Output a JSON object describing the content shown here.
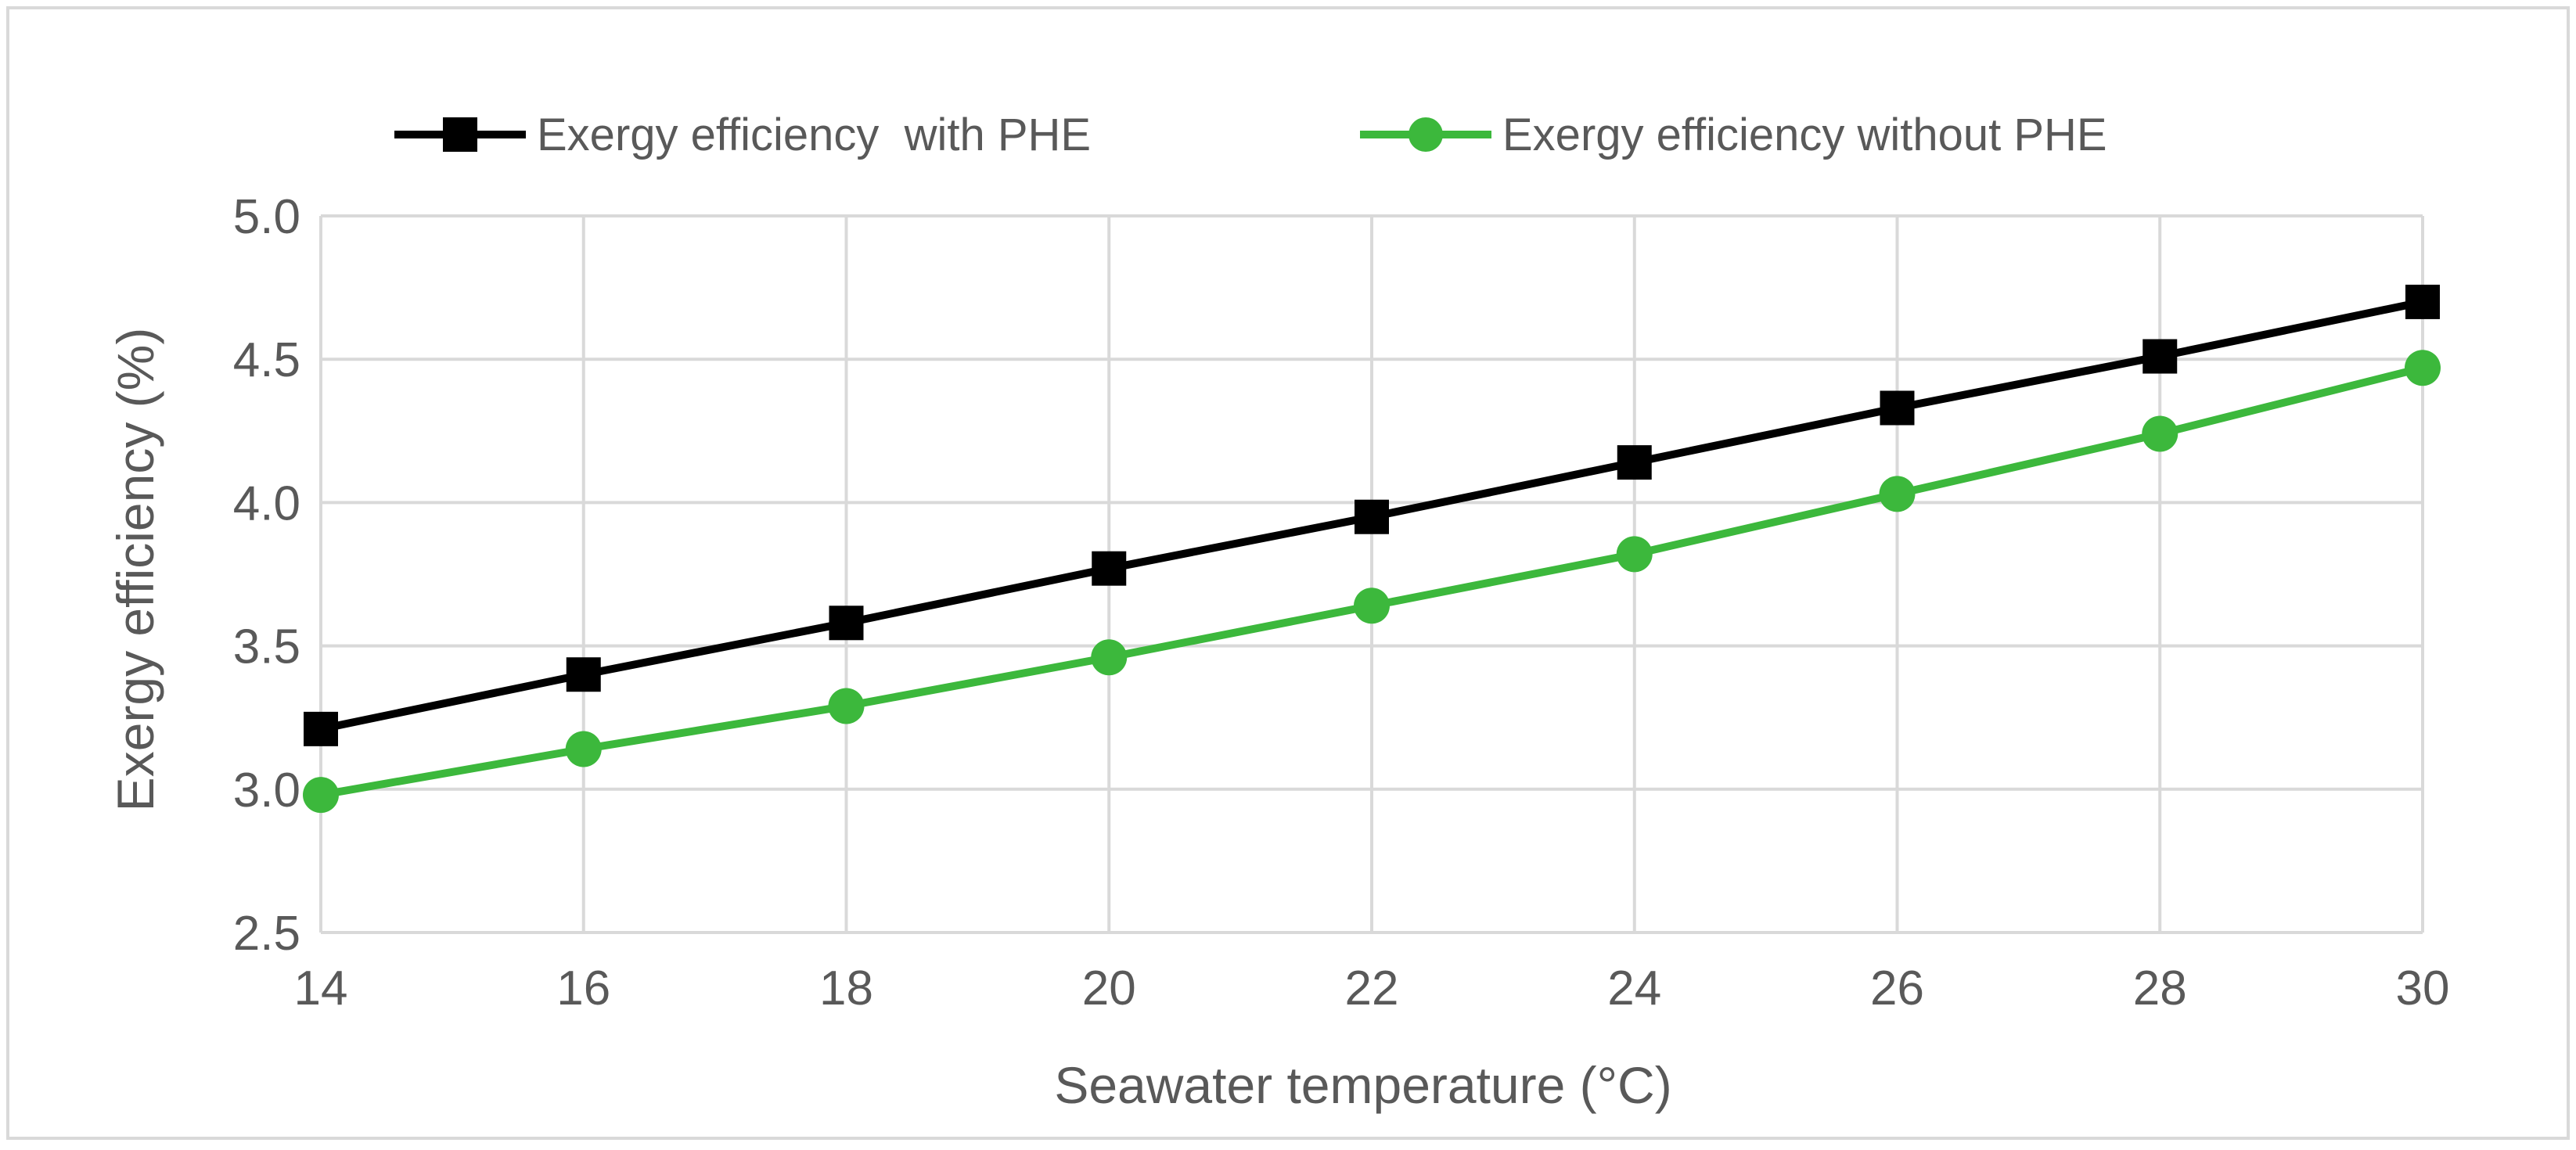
{
  "chart_data": {
    "type": "line",
    "title": "",
    "xlabel": "Seawater temperature (°C)",
    "ylabel": "Exergy efficiency (%)",
    "x": [
      14,
      16,
      18,
      20,
      22,
      24,
      26,
      28,
      30
    ],
    "xlim": [
      14,
      30
    ],
    "ylim": [
      2.5,
      5.0
    ],
    "xticks": [
      "14",
      "16",
      "18",
      "20",
      "22",
      "24",
      "26",
      "28",
      "30"
    ],
    "yticks": [
      "2.5",
      "3.0",
      "3.5",
      "4.0",
      "4.5",
      "5.0"
    ],
    "grid": true,
    "legend_position": "top",
    "series": [
      {
        "name": "Exergy efficiency  with PHE",
        "color": "#000000",
        "marker": "square",
        "values": [
          3.21,
          3.4,
          3.58,
          3.77,
          3.95,
          4.14,
          4.33,
          4.51,
          4.7
        ]
      },
      {
        "name": "Exergy efficiency without PHE",
        "color": "#3cb83c",
        "marker": "circle",
        "values": [
          2.98,
          3.14,
          3.29,
          3.46,
          3.64,
          3.82,
          4.03,
          4.24,
          4.47
        ]
      }
    ]
  }
}
